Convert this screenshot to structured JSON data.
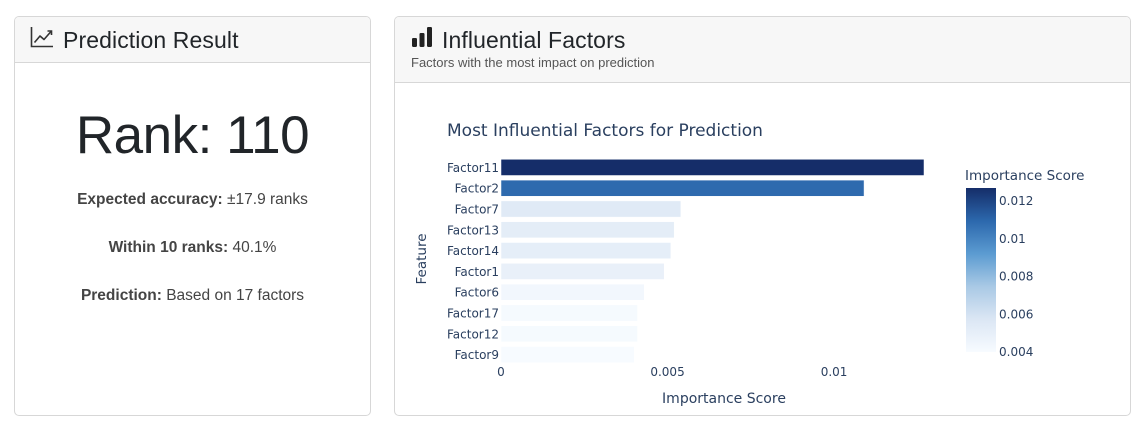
{
  "prediction": {
    "title": "Prediction Result",
    "title_icon": "line-chart-icon",
    "rank_text": "Rank: 110",
    "stats": [
      {
        "label": "Expected accuracy:",
        "value": " ±17.9 ranks"
      },
      {
        "label": "Within 10 ranks:",
        "value": " 40.1%"
      },
      {
        "label": "Prediction:",
        "value": " Based on 17 factors"
      }
    ]
  },
  "factors_panel": {
    "title": "Influential Factors",
    "title_icon": "bar-chart-icon",
    "subtitle": "Factors with the most impact on prediction"
  },
  "chart_data": {
    "type": "bar",
    "orientation": "horizontal",
    "title": "Most Influential Factors for Prediction",
    "xlabel": "Importance Score",
    "ylabel": "Feature",
    "categories": [
      "Factor11",
      "Factor2",
      "Factor7",
      "Factor13",
      "Factor14",
      "Factor1",
      "Factor6",
      "Factor17",
      "Factor12",
      "Factor9"
    ],
    "values": [
      0.0127,
      0.0109,
      0.0054,
      0.0052,
      0.0051,
      0.0049,
      0.0043,
      0.0041,
      0.0041,
      0.004
    ],
    "xlim": [
      0,
      0.0127
    ],
    "x_ticks": [
      {
        "value": 0,
        "label": "0"
      },
      {
        "value": 0.005,
        "label": "0.005"
      },
      {
        "value": 0.01,
        "label": "0.01"
      }
    ],
    "colorbar": {
      "title": "Importance Score",
      "range": [
        0.004,
        0.0127
      ],
      "ticks": [
        {
          "value": 0.012,
          "label": "0.012"
        },
        {
          "value": 0.01,
          "label": "0.01"
        },
        {
          "value": 0.008,
          "label": "0.008"
        },
        {
          "value": 0.006,
          "label": "0.006"
        },
        {
          "value": 0.004,
          "label": "0.004"
        }
      ],
      "colors": [
        "#f7fbff",
        "#dbe6f4",
        "#a9c9e5",
        "#5b9bd1",
        "#2c68ad",
        "#152d69"
      ]
    },
    "grid": false
  }
}
